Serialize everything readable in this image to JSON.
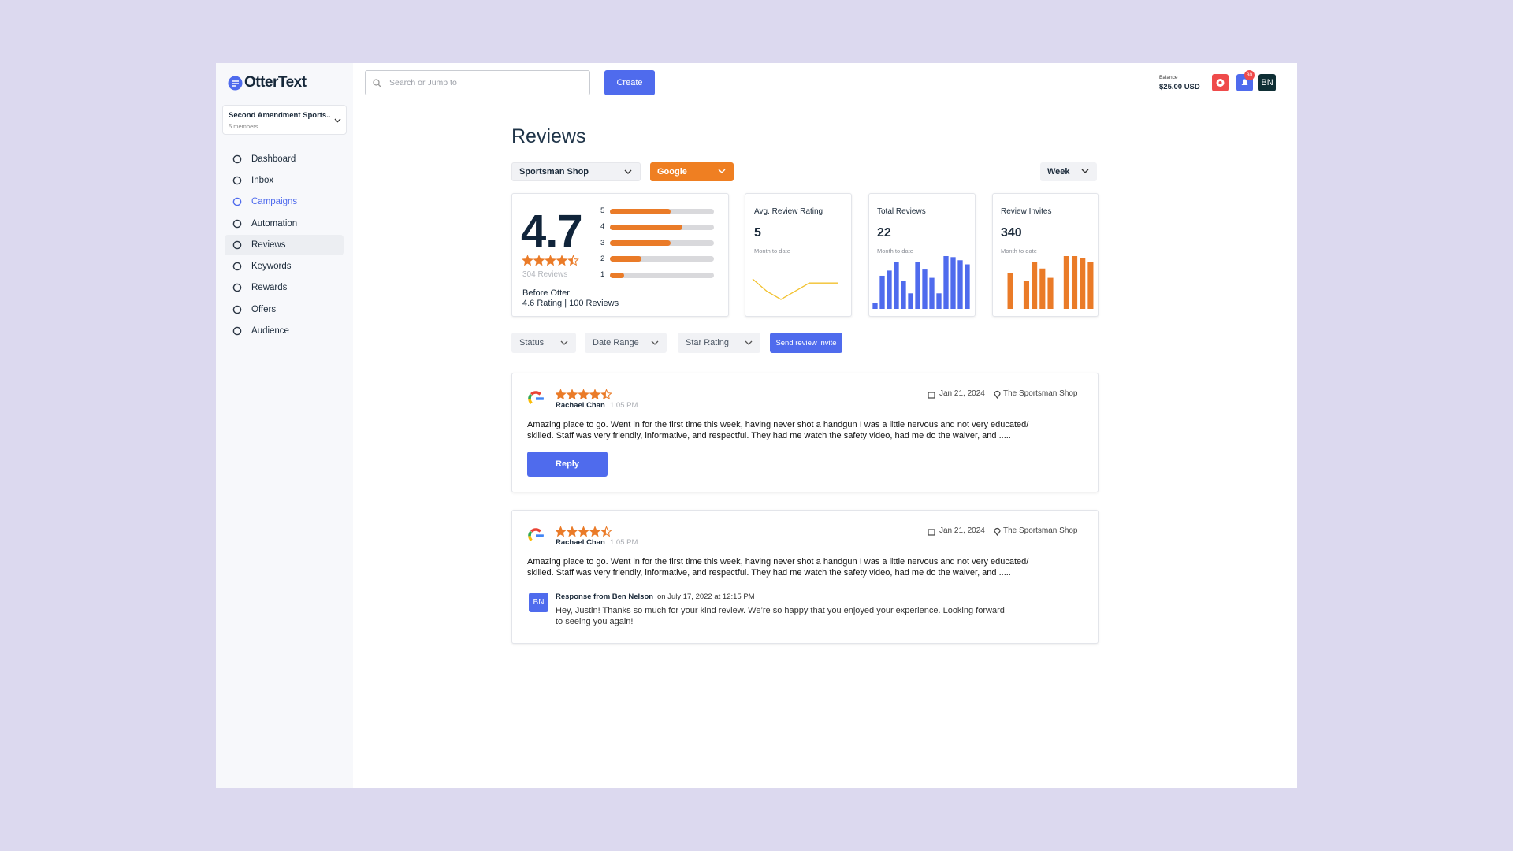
{
  "sidebar": {
    "logo": "OtterText",
    "org": {
      "name": "Second Amendment Sports..",
      "members": "5 members"
    },
    "nav": [
      "Dashboard",
      "Inbox",
      "Campaigns",
      "Automation",
      "Reviews",
      "Keywords",
      "Rewards",
      "Offers",
      "Audience"
    ]
  },
  "topbar": {
    "search_placeholder": "Search or Jump to",
    "create": "Create",
    "balance_label": "Balance",
    "balance": "$25.00 USD",
    "notification_count": "30",
    "avatar": "BN"
  },
  "page": {
    "title": "Reviews",
    "location": "Sportsman Shop",
    "source": "Google",
    "period": "Week"
  },
  "summary": {
    "rating": 4.7,
    "stars": 4.5,
    "reviews": "304 Reviews",
    "before_label": "Before Otter",
    "before_stats": "4.6 Rating | 100 Reviews",
    "distribution": {
      "labels": [
        5,
        4,
        3,
        2,
        1
      ],
      "percent": [
        58,
        70,
        58,
        30,
        14
      ],
      "color": "#ea7b28"
    }
  },
  "stats": [
    {
      "title": "Avg. Review Rating",
      "value": 5,
      "note": "Month to date",
      "chart": {
        "type": "line",
        "color": "#f2c12e",
        "values": [
          4.9,
          4.6,
          4.4,
          4.6,
          4.8,
          4.8,
          4.8
        ]
      }
    },
    {
      "title": "Total Reviews",
      "value": 22,
      "note": "Month to date",
      "chart": {
        "type": "bar",
        "color": "#4f6bed",
        "values": [
          6,
          32,
          37,
          45,
          27,
          15,
          45,
          38,
          30,
          15,
          51,
          50,
          47,
          43
        ]
      }
    },
    {
      "title": "Review Invites",
      "value": 340,
      "note": "Month to date",
      "chart": {
        "type": "bar",
        "color": "#ea7b28",
        "values": [
          35,
          0,
          27,
          45,
          39,
          30,
          0,
          51,
          51,
          49,
          45
        ]
      }
    }
  ],
  "filters": [
    "Status",
    "Date Range",
    "Star Rating"
  ],
  "invite_button": "Send review invite",
  "reviews": [
    {
      "stars": 4.5,
      "author": "Rachael Chan",
      "time": "1:05 PM",
      "date": "Jan 21, 2024",
      "location": "The Sportsman Shop",
      "lines": [
        "Amazing place to go. Went in for the first time this week, having never shot a handgun I was a little nervous and not very educated/",
        "skilled. Staff was very friendly, informative, and respectful. They had me watch the safety video, had me do the waiver, and ....."
      ],
      "reply": "Reply"
    },
    {
      "stars": 4.5,
      "author": "Rachael Chan",
      "time": "1:05 PM",
      "date": "Jan 21, 2024",
      "location": "The Sportsman Shop",
      "lines": [
        "Amazing place to go. Went in for the first time this week, having never shot a handgun I was a little nervous and not very educated/",
        "skilled. Staff was very friendly, informative, and respectful. They had me watch the safety video, had me do the waiver, and ....."
      ],
      "response": {
        "avatar": "BN",
        "author": "Response from Ben Nelson",
        "meta": "on July 17, 2022 at 12:15 PM",
        "lines": [
          "Hey, Justin! Thanks so much for your kind review. We’re so happy that you enjoyed your experience. Looking forward",
          "to seeing you again!"
        ]
      }
    }
  ]
}
